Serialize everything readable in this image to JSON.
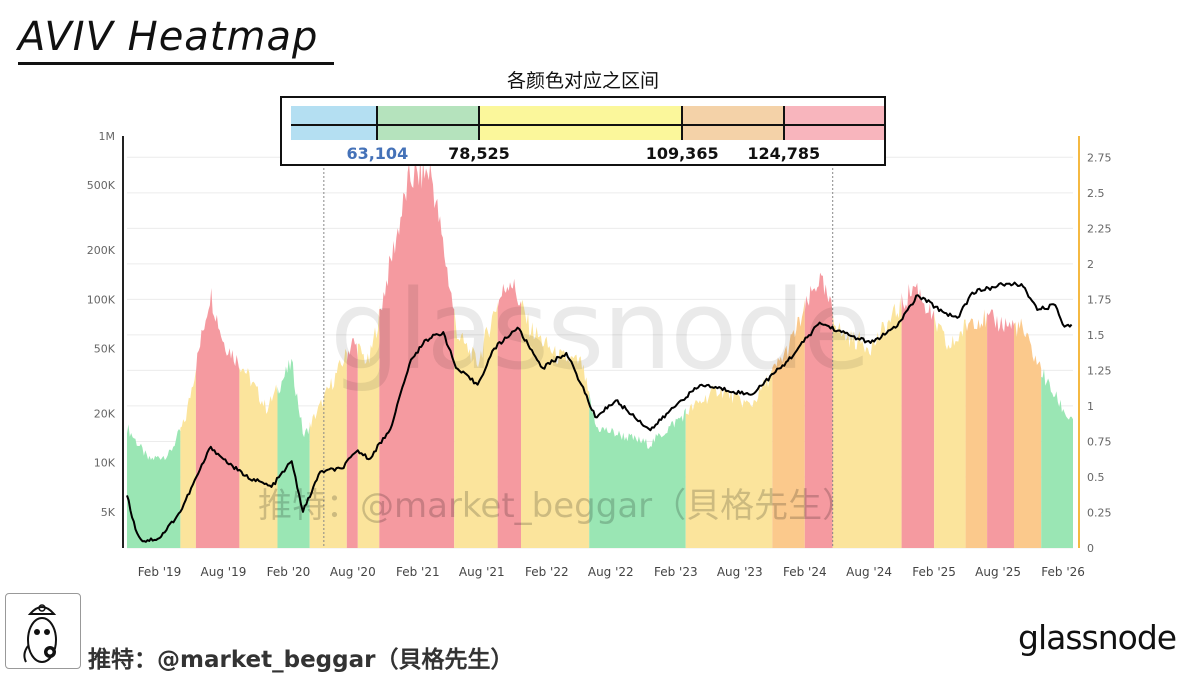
{
  "title": "AVIV Heatmap",
  "legend": {
    "caption": "各颜色对应之区间",
    "bands": [
      {
        "color": "#b4dff2",
        "upper": 63104
      },
      {
        "color": "#b5e3bd",
        "upper": 78525
      },
      {
        "color": "#fbf79b",
        "upper": 109365
      },
      {
        "color": "#f4d2a8",
        "upper": 124785
      },
      {
        "color": "#f8b5bd",
        "upper": null
      }
    ],
    "thresholds": [
      {
        "label": "63,104",
        "value": 63104,
        "color": "#4572b8"
      },
      {
        "label": "78,525",
        "value": 78525,
        "color": "#111111"
      },
      {
        "label": "109,365",
        "value": 109365,
        "color": "#111111"
      },
      {
        "label": "124,785",
        "value": 124785,
        "color": "#111111"
      }
    ]
  },
  "watermark": "glassnode",
  "overlay_handle": "推特：@market_beggar（貝格先生）",
  "footer": {
    "handle": "推特：@market_beggar（貝格先生）",
    "brand": "glassnode",
    "avatar_icon": "cartoon-avatar-icon"
  },
  "chart_data": {
    "type": "area",
    "x_axis": {
      "type": "time",
      "ticks": [
        "Feb '19",
        "Aug '19",
        "Feb '20",
        "Aug '20",
        "Feb '21",
        "Aug '21",
        "Feb '22",
        "Aug '22",
        "Feb '23",
        "Aug '23",
        "Feb '24",
        "Aug '24",
        "Feb '25",
        "Aug '25",
        "Feb '26"
      ]
    },
    "y_left": {
      "scale": "log",
      "ticks": [
        "5K",
        "10K",
        "20K",
        "50K",
        "100K",
        "200K",
        "500K",
        "1M"
      ],
      "tick_values": [
        5000,
        10000,
        20000,
        50000,
        100000,
        200000,
        500000,
        1000000
      ],
      "range": [
        3000,
        1000000
      ]
    },
    "y_right": {
      "scale": "linear",
      "ticks": [
        "0",
        "0.25",
        "0.5",
        "0.75",
        "1",
        "1.25",
        "1.5",
        "1.75",
        "2",
        "2.25",
        "2.5",
        "2.75"
      ],
      "range": [
        0,
        2.9
      ],
      "color": "#f5b942"
    },
    "colors": {
      "green": "#9ae6b4",
      "yellow": "#fbe49c",
      "orange": "#fbc98c",
      "red": "#f59aa0",
      "price": "#000000"
    },
    "segments": [
      {
        "start": "2018-11-01",
        "end": "2019-04-01",
        "zone": "green"
      },
      {
        "start": "2019-04-01",
        "end": "2019-05-15",
        "zone": "yellow"
      },
      {
        "start": "2019-05-15",
        "end": "2019-09-15",
        "zone": "red"
      },
      {
        "start": "2019-09-15",
        "end": "2020-01-01",
        "zone": "yellow"
      },
      {
        "start": "2020-01-01",
        "end": "2020-04-01",
        "zone": "green"
      },
      {
        "start": "2020-04-01",
        "end": "2020-07-15",
        "zone": "yellow"
      },
      {
        "start": "2020-07-15",
        "end": "2020-08-15",
        "zone": "red"
      },
      {
        "start": "2020-08-15",
        "end": "2020-10-15",
        "zone": "yellow"
      },
      {
        "start": "2020-10-15",
        "end": "2021-05-15",
        "zone": "red"
      },
      {
        "start": "2021-05-15",
        "end": "2021-09-15",
        "zone": "yellow"
      },
      {
        "start": "2021-09-15",
        "end": "2021-11-20",
        "zone": "red"
      },
      {
        "start": "2021-11-20",
        "end": "2022-06-01",
        "zone": "yellow"
      },
      {
        "start": "2022-06-01",
        "end": "2023-03-01",
        "zone": "green"
      },
      {
        "start": "2023-03-01",
        "end": "2023-11-01",
        "zone": "yellow"
      },
      {
        "start": "2023-11-01",
        "end": "2024-02-01",
        "zone": "orange"
      },
      {
        "start": "2024-02-01",
        "end": "2024-04-20",
        "zone": "red"
      },
      {
        "start": "2024-04-20",
        "end": "2024-11-01",
        "zone": "yellow"
      },
      {
        "start": "2024-11-01",
        "end": "2025-02-01",
        "zone": "red"
      },
      {
        "start": "2025-02-01",
        "end": "2025-05-01",
        "zone": "yellow"
      },
      {
        "start": "2025-05-01",
        "end": "2025-07-01",
        "zone": "orange"
      },
      {
        "start": "2025-07-01",
        "end": "2025-09-15",
        "zone": "red"
      },
      {
        "start": "2025-09-15",
        "end": "2025-12-01",
        "zone": "orange"
      },
      {
        "start": "2025-12-01",
        "end": "2026-03-01",
        "zone": "green"
      }
    ],
    "aviv_area": [
      {
        "date": "2018-11-01",
        "aviv": 0.85
      },
      {
        "date": "2019-01-01",
        "aviv": 0.62
      },
      {
        "date": "2019-03-01",
        "aviv": 0.66
      },
      {
        "date": "2019-04-15",
        "aviv": 0.9
      },
      {
        "date": "2019-06-25",
        "aviv": 1.8
      },
      {
        "date": "2019-08-01",
        "aviv": 1.45
      },
      {
        "date": "2019-10-01",
        "aviv": 1.25
      },
      {
        "date": "2019-12-01",
        "aviv": 0.98
      },
      {
        "date": "2020-02-10",
        "aviv": 1.3
      },
      {
        "date": "2020-03-15",
        "aviv": 0.78
      },
      {
        "date": "2020-05-01",
        "aviv": 1.0
      },
      {
        "date": "2020-08-01",
        "aviv": 1.45
      },
      {
        "date": "2020-09-15",
        "aviv": 1.3
      },
      {
        "date": "2020-11-15",
        "aviv": 2.0
      },
      {
        "date": "2021-01-08",
        "aviv": 2.6
      },
      {
        "date": "2021-03-10",
        "aviv": 2.65
      },
      {
        "date": "2021-05-25",
        "aviv": 1.5
      },
      {
        "date": "2021-07-20",
        "aviv": 1.3
      },
      {
        "date": "2021-09-10",
        "aviv": 1.7
      },
      {
        "date": "2021-10-20",
        "aviv": 1.9
      },
      {
        "date": "2021-12-15",
        "aviv": 1.55
      },
      {
        "date": "2022-03-01",
        "aviv": 1.35
      },
      {
        "date": "2022-05-10",
        "aviv": 1.3
      },
      {
        "date": "2022-06-20",
        "aviv": 0.85
      },
      {
        "date": "2022-11-20",
        "aviv": 0.73
      },
      {
        "date": "2023-03-01",
        "aviv": 0.95
      },
      {
        "date": "2023-06-01",
        "aviv": 1.12
      },
      {
        "date": "2023-09-01",
        "aviv": 1.0
      },
      {
        "date": "2023-12-15",
        "aviv": 1.4
      },
      {
        "date": "2024-03-12",
        "aviv": 1.9
      },
      {
        "date": "2024-05-15",
        "aviv": 1.5
      },
      {
        "date": "2024-08-10",
        "aviv": 1.42
      },
      {
        "date": "2024-12-10",
        "aviv": 1.85
      },
      {
        "date": "2025-03-15",
        "aviv": 1.4
      },
      {
        "date": "2025-05-20",
        "aviv": 1.62
      },
      {
        "date": "2025-07-15",
        "aviv": 1.6
      },
      {
        "date": "2025-10-05",
        "aviv": 1.55
      },
      {
        "date": "2025-12-20",
        "aviv": 1.15
      },
      {
        "date": "2026-02-15",
        "aviv": 0.92
      }
    ],
    "price_line": [
      {
        "date": "2018-11-01",
        "price": 6300
      },
      {
        "date": "2018-11-25",
        "price": 3900
      },
      {
        "date": "2018-12-15",
        "price": 3300
      },
      {
        "date": "2019-02-01",
        "price": 3450
      },
      {
        "date": "2019-04-01",
        "price": 5000
      },
      {
        "date": "2019-06-26",
        "price": 12500
      },
      {
        "date": "2019-08-01",
        "price": 10500
      },
      {
        "date": "2019-10-01",
        "price": 8300
      },
      {
        "date": "2019-12-15",
        "price": 7100
      },
      {
        "date": "2020-02-10",
        "price": 10200
      },
      {
        "date": "2020-03-13",
        "price": 5000
      },
      {
        "date": "2020-05-01",
        "price": 8800
      },
      {
        "date": "2020-07-01",
        "price": 9200
      },
      {
        "date": "2020-08-15",
        "price": 11900
      },
      {
        "date": "2020-09-15",
        "price": 10500
      },
      {
        "date": "2020-11-15",
        "price": 16000
      },
      {
        "date": "2021-01-08",
        "price": 40000
      },
      {
        "date": "2021-02-20",
        "price": 56000
      },
      {
        "date": "2021-04-14",
        "price": 63000
      },
      {
        "date": "2021-05-20",
        "price": 38000
      },
      {
        "date": "2021-07-20",
        "price": 30000
      },
      {
        "date": "2021-09-05",
        "price": 50000
      },
      {
        "date": "2021-11-10",
        "price": 67000
      },
      {
        "date": "2022-01-20",
        "price": 38000
      },
      {
        "date": "2022-03-28",
        "price": 47000
      },
      {
        "date": "2022-05-10",
        "price": 30000
      },
      {
        "date": "2022-06-18",
        "price": 19000
      },
      {
        "date": "2022-08-15",
        "price": 24000
      },
      {
        "date": "2022-11-21",
        "price": 15800
      },
      {
        "date": "2023-02-15",
        "price": 24000
      },
      {
        "date": "2023-04-15",
        "price": 30000
      },
      {
        "date": "2023-09-01",
        "price": 26000
      },
      {
        "date": "2023-12-15",
        "price": 42000
      },
      {
        "date": "2024-03-14",
        "price": 72000
      },
      {
        "date": "2024-05-15",
        "price": 63000
      },
      {
        "date": "2024-08-05",
        "price": 54000
      },
      {
        "date": "2024-10-15",
        "price": 67000
      },
      {
        "date": "2024-12-17",
        "price": 106000
      },
      {
        "date": "2025-02-25",
        "price": 84000
      },
      {
        "date": "2025-04-08",
        "price": 77000
      },
      {
        "date": "2025-05-20",
        "price": 110000
      },
      {
        "date": "2025-08-14",
        "price": 123000
      },
      {
        "date": "2025-10-06",
        "price": 124000
      },
      {
        "date": "2025-11-20",
        "price": 86000
      },
      {
        "date": "2026-01-10",
        "price": 92000
      },
      {
        "date": "2026-02-05",
        "price": 68000
      },
      {
        "date": "2026-02-25",
        "price": 70000
      }
    ],
    "markers": [
      "2020-05-11",
      "2024-04-20"
    ],
    "grid": true
  }
}
